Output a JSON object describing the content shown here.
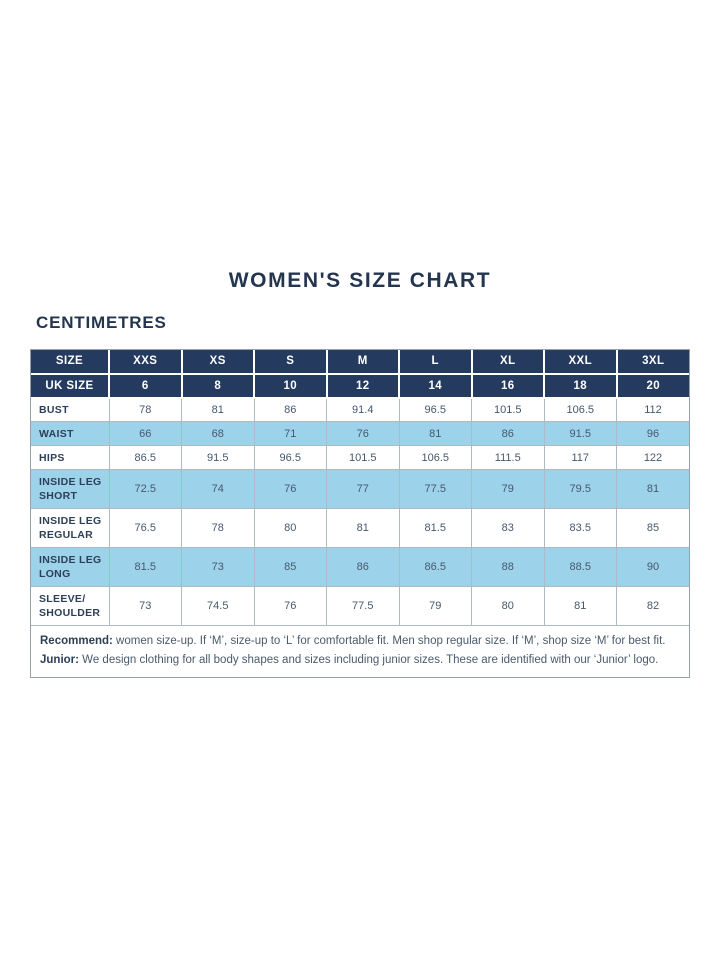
{
  "page": {
    "title": "WOMEN'S SIZE CHART",
    "unit_heading": "CENTIMETRES"
  },
  "colors": {
    "header_bg": "#243A5E",
    "header_text": "#FFFFFF",
    "highlight_bg": "#9DD2EB",
    "row_bg": "#FFFFFF",
    "inner_border": "#AFB9C4",
    "frame_border": "#97A1AC",
    "title_text": "#24364F",
    "label_text": "#2E4057",
    "value_text": "#46586C",
    "footnote_text": "#4A5A6C"
  },
  "size_table": {
    "header_rows": [
      {
        "label": "SIZE",
        "values": [
          "XXS",
          "XS",
          "S",
          "M",
          "L",
          "XL",
          "XXL",
          "3XL"
        ]
      },
      {
        "label": "UK SIZE",
        "values": [
          "6",
          "8",
          "10",
          "12",
          "14",
          "16",
          "18",
          "20"
        ]
      }
    ],
    "rows": [
      {
        "label_lines": [
          "BUST"
        ],
        "highlight": false,
        "values": [
          "78",
          "81",
          "86",
          "91.4",
          "96.5",
          "101.5",
          "106.5",
          "112"
        ]
      },
      {
        "label_lines": [
          "WAIST"
        ],
        "highlight": true,
        "values": [
          "66",
          "68",
          "71",
          "76",
          "81",
          "86",
          "91.5",
          "96"
        ]
      },
      {
        "label_lines": [
          "HIPS"
        ],
        "highlight": false,
        "values": [
          "86.5",
          "91.5",
          "96.5",
          "101.5",
          "106.5",
          "111.5",
          "117",
          "122"
        ]
      },
      {
        "label_lines": [
          "INSIDE LEG",
          "SHORT"
        ],
        "highlight": true,
        "values": [
          "72.5",
          "74",
          "76",
          "77",
          "77.5",
          "79",
          "79.5",
          "81"
        ]
      },
      {
        "label_lines": [
          "INSIDE LEG",
          "REGULAR"
        ],
        "highlight": false,
        "values": [
          "76.5",
          "78",
          "80",
          "81",
          "81.5",
          "83",
          "83.5",
          "85"
        ]
      },
      {
        "label_lines": [
          "INSIDE LEG",
          "LONG"
        ],
        "highlight": true,
        "values": [
          "81.5",
          "73",
          "85",
          "86",
          "86.5",
          "88",
          "88.5",
          "90"
        ]
      },
      {
        "label_lines": [
          "SLEEVE/",
          "SHOULDER"
        ],
        "highlight": false,
        "values": [
          "73",
          "74.5",
          "76",
          "77.5",
          "79",
          "80",
          "81",
          "82"
        ]
      }
    ],
    "footnotes": [
      {
        "label": "Recommend:",
        "text": " women size-up. If ‘M’, size-up to ‘L’ for comfortable fit. Men shop regular size. If ‘M’, shop size ‘M’ for best fit."
      },
      {
        "label": "Junior:",
        "text": " We design clothing for all body shapes and sizes including junior sizes. These are identified with our ‘Junior’ logo."
      }
    ]
  }
}
